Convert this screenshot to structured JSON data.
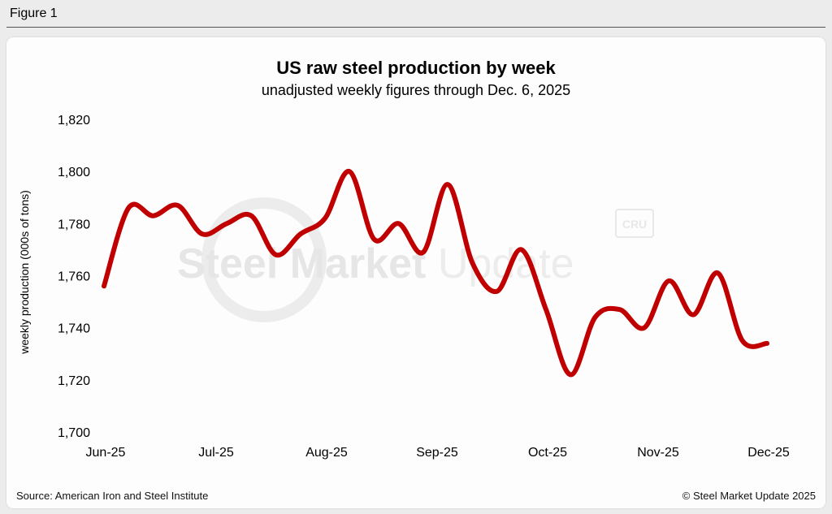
{
  "figure_label": "Figure 1",
  "colors": {
    "line": "#c00000",
    "background": "#fdfdfd",
    "page": "#ececec"
  },
  "watermark": {
    "text_bold": "Steel Market",
    "text_light": "Update",
    "badge": "CRU"
  },
  "footer": {
    "source": "Source: American Iron and Steel Institute",
    "copyright": "© Steel Market Update 2025"
  },
  "chart_data": {
    "type": "line",
    "title": "US raw steel production by week",
    "subtitle": "unadjusted weekly figures through Dec. 6, 2025",
    "xlabel": "",
    "ylabel": "weekly production (000s of tons)",
    "ylim": [
      1700,
      1820
    ],
    "yticks": [
      1700,
      1720,
      1740,
      1760,
      1780,
      1800,
      1820
    ],
    "ytick_labels": [
      "1,700",
      "1,720",
      "1,740",
      "1,760",
      "1,780",
      "1,800",
      "1,820"
    ],
    "xtick_labels": [
      "Jun-25",
      "Jul-25",
      "Aug-25",
      "Sep-25",
      "Oct-25",
      "Nov-25",
      "Dec-25"
    ],
    "grid": false,
    "legend": "none",
    "series": [
      {
        "values": [
          1756,
          1786,
          1783,
          1787,
          1776,
          1780,
          1783,
          1768,
          1776,
          1782,
          1800,
          1774,
          1780,
          1769,
          1795,
          1765,
          1754,
          1770,
          1747,
          1722,
          1744,
          1747,
          1740,
          1758,
          1745,
          1761,
          1735,
          1734
        ]
      }
    ]
  }
}
